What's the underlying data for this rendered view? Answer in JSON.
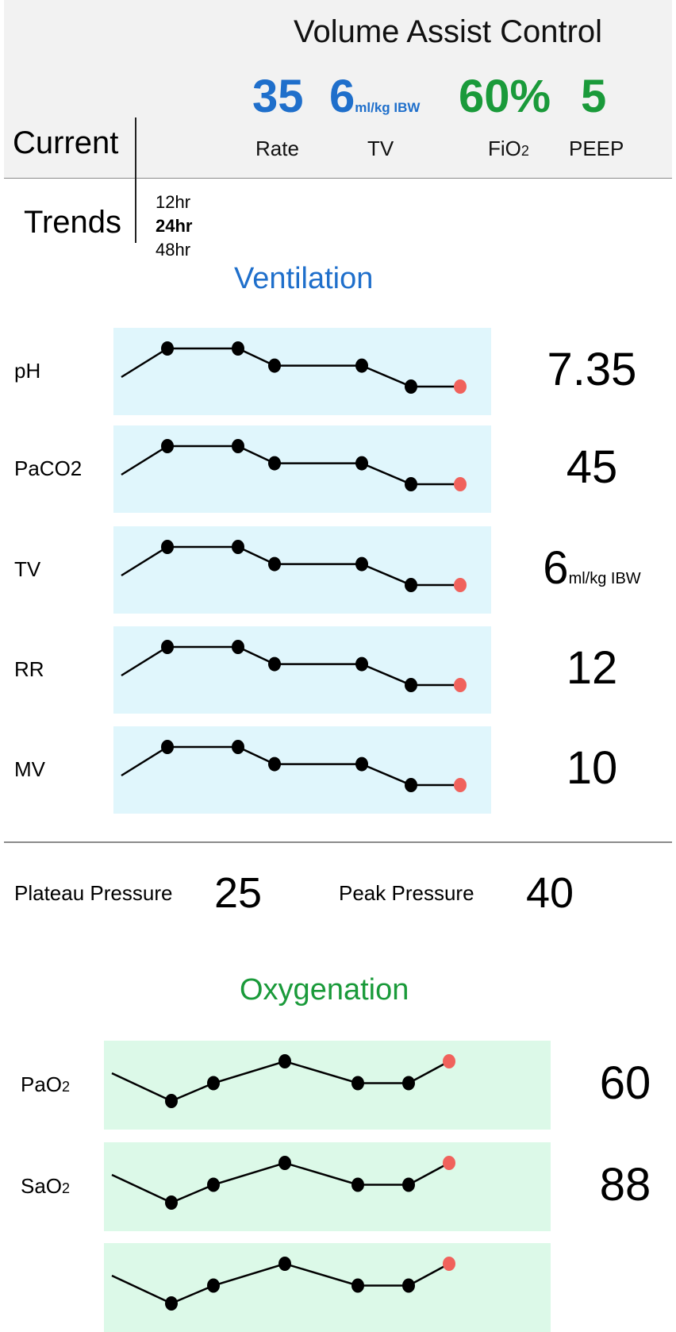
{
  "mode": "Volume Assist Control",
  "settings": [
    {
      "key": "rate",
      "value": "35",
      "unit": "",
      "label": "Rate",
      "color": "#1f6fcb"
    },
    {
      "key": "tv",
      "value": "6",
      "unit": "ml/kg IBW",
      "label": "TV",
      "color": "#1f6fcb"
    },
    {
      "key": "fio2",
      "value": "60%",
      "unit": "",
      "label": "FiO2",
      "color": "#1a9a3a"
    },
    {
      "key": "peep",
      "value": "5",
      "unit": "",
      "label": "PEEP",
      "color": "#1a9a3a"
    }
  ],
  "current_label": "Current",
  "trends_label": "Trends",
  "trend_options": [
    "12hr",
    "24hr",
    "48hr"
  ],
  "selected_trend": "24hr",
  "ventilation": {
    "title": "Ventilation",
    "title_color": "#1f6fcb",
    "bg_color": "#e0f6fc"
  },
  "oxygenation": {
    "title": "Oxygenation",
    "title_color": "#1a9a3a",
    "bg_color": "#dcf9e8"
  },
  "pressures": {
    "plateau_label": "Plateau Pressure",
    "plateau_value": "25",
    "peak_label": "Peak Pressure",
    "peak_value": "40"
  },
  "colors": {
    "latest_point": "#f0625c",
    "history_point": "#000000"
  },
  "chart_data": [
    {
      "type": "line",
      "name": "pH",
      "latest": "7.35",
      "unit": "",
      "y": [
        1,
        1,
        0.55,
        0.55,
        0,
        0
      ]
    },
    {
      "type": "line",
      "name": "PaCO2",
      "latest": "45",
      "unit": "",
      "y": [
        1,
        1,
        0.55,
        0.55,
        0,
        0
      ]
    },
    {
      "type": "line",
      "name": "TV",
      "latest": "6",
      "unit": "ml/kg IBW",
      "y": [
        1,
        1,
        0.55,
        0.55,
        0,
        0
      ]
    },
    {
      "type": "line",
      "name": "RR",
      "latest": "12",
      "unit": "",
      "y": [
        1,
        1,
        0.55,
        0.55,
        0,
        0
      ]
    },
    {
      "type": "line",
      "name": "MV",
      "latest": "10",
      "unit": "",
      "y": [
        1,
        1,
        0.55,
        0.55,
        0,
        0
      ]
    },
    {
      "type": "line",
      "name": "PaO2",
      "latest": "60",
      "unit": "",
      "y": [
        0,
        0.45,
        1,
        0.45,
        0.45,
        1
      ]
    },
    {
      "type": "line",
      "name": "SaO2",
      "latest": "88",
      "unit": "",
      "y": [
        0,
        0.45,
        1,
        0.45,
        0.45,
        1
      ]
    },
    {
      "type": "line",
      "name": "",
      "latest": "",
      "unit": "",
      "y": [
        0,
        0.45,
        1,
        0.45,
        0.45,
        1
      ]
    }
  ]
}
